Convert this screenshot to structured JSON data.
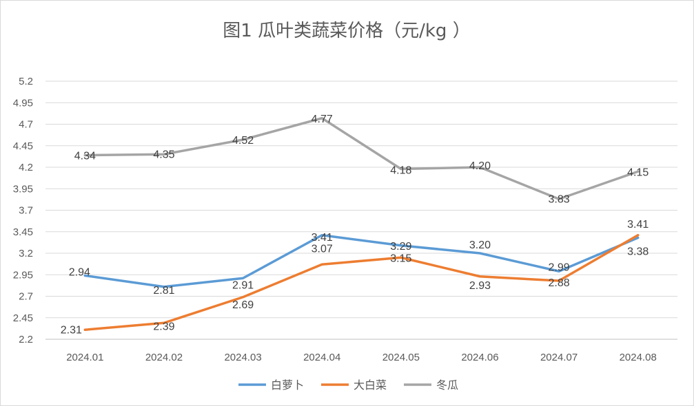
{
  "chart_data": {
    "type": "line",
    "title": "图1  瓜叶类蔬菜价格（元/kg ）",
    "xlabel": "",
    "ylabel": "",
    "categories": [
      "2024.01",
      "2024.02",
      "2024.03",
      "2024.04",
      "2024.05",
      "2024.06",
      "2024.07",
      "2024.08"
    ],
    "y_ticks": [
      "2.2",
      "2.45",
      "2.7",
      "2.95",
      "3.2",
      "3.45",
      "3.7",
      "3.95",
      "4.2",
      "4.45",
      "4.7",
      "4.95",
      "5.2"
    ],
    "ylim": [
      2.2,
      5.2
    ],
    "grid": true,
    "legend_position": "bottom",
    "series": [
      {
        "name": "白萝卜",
        "color": "#5B9BD5",
        "values": [
          2.94,
          2.81,
          2.91,
          3.41,
          3.29,
          3.2,
          2.99,
          3.38
        ],
        "labels": [
          "2.94",
          "2.81",
          "2.91",
          "3.41",
          "3.29",
          "3.20",
          "2.99",
          "3.38"
        ]
      },
      {
        "name": "大白菜",
        "color": "#ED7D31",
        "values": [
          2.31,
          2.39,
          2.69,
          3.07,
          3.15,
          2.93,
          2.88,
          3.41
        ],
        "labels": [
          "2.31",
          "2.39",
          "2.69",
          "3.07",
          "3.15",
          "2.93",
          "2.88",
          "3.41"
        ]
      },
      {
        "name": "冬瓜",
        "color": "#A5A5A5",
        "values": [
          4.34,
          4.35,
          4.52,
          4.77,
          4.18,
          4.2,
          3.83,
          4.15
        ],
        "labels": [
          "4.34",
          "4.35",
          "4.52",
          "4.77",
          "4.18",
          "4.20",
          "3.83",
          "4.15"
        ]
      }
    ]
  }
}
